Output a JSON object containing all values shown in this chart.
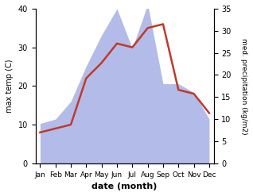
{
  "months": [
    "Jan",
    "Feb",
    "Mar",
    "Apr",
    "May",
    "Jun",
    "Jul",
    "Aug",
    "Sep",
    "Oct",
    "Nov",
    "Dec"
  ],
  "temperature": [
    8,
    9,
    10,
    22,
    26,
    31,
    30,
    35,
    36,
    19,
    18,
    13
  ],
  "precipitation": [
    9,
    10,
    14,
    22,
    29,
    35,
    26,
    36,
    18,
    18,
    16,
    10
  ],
  "temp_color": "#c0392b",
  "precip_color": "#b3bce8",
  "left_ylim": [
    0,
    40
  ],
  "right_ylim": [
    0,
    35
  ],
  "left_yticks": [
    0,
    10,
    20,
    30,
    40
  ],
  "right_yticks": [
    0,
    5,
    10,
    15,
    20,
    25,
    30,
    35
  ],
  "xlabel": "date (month)",
  "ylabel_left": "max temp (C)",
  "ylabel_right": "med. precipitation (kg/m2)",
  "temp_linewidth": 1.8,
  "figsize": [
    3.18,
    2.47
  ],
  "dpi": 100
}
